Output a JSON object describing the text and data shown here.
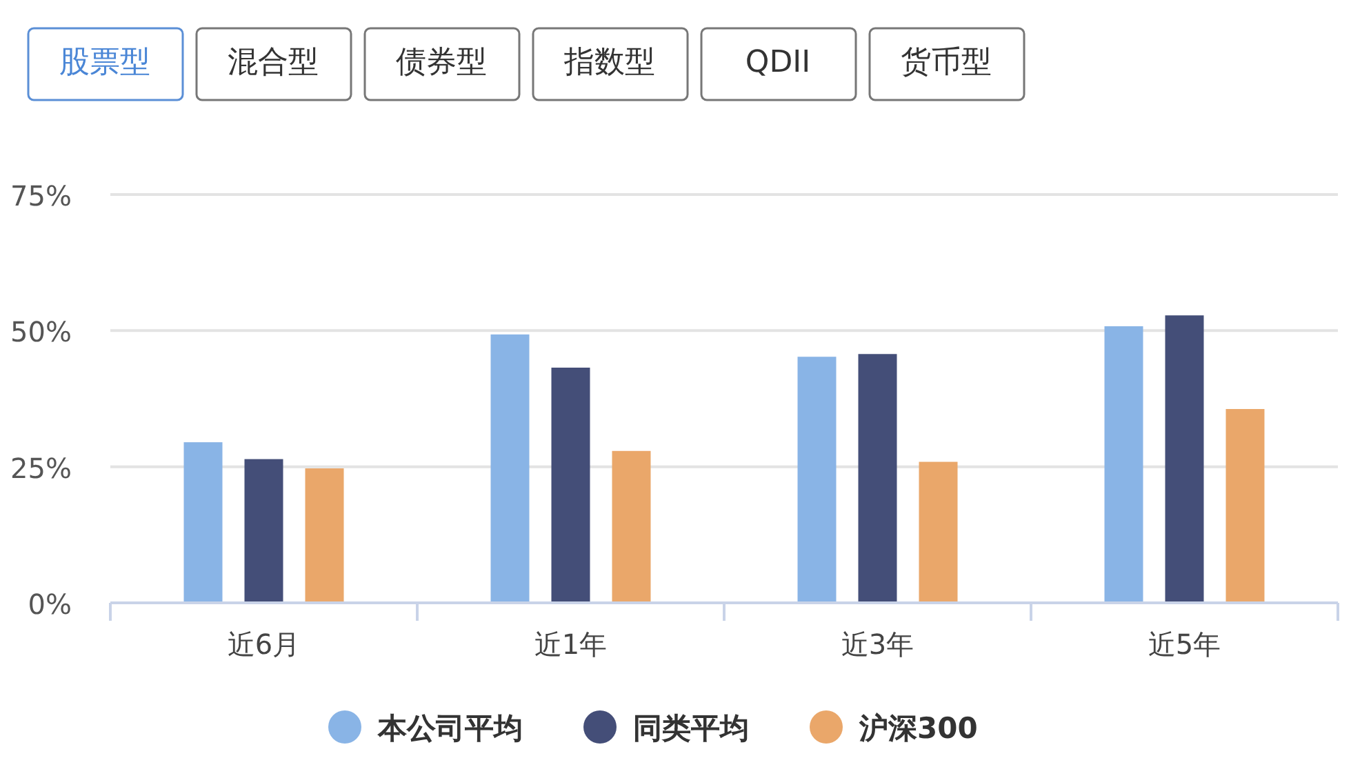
{
  "chart_data": {
    "type": "bar",
    "categories": [
      "近6月",
      "近1年",
      "近3年",
      "近5年"
    ],
    "series": [
      {
        "name": "本公司平均",
        "color": "#89b4e6",
        "values": [
          29.5,
          49.3,
          45.2,
          50.8
        ]
      },
      {
        "name": "同类平均",
        "color": "#444e78",
        "values": [
          26.4,
          43.2,
          45.7,
          52.8
        ]
      },
      {
        "name": "沪深300",
        "color": "#eaa76a",
        "values": [
          24.7,
          27.9,
          25.9,
          35.6
        ]
      }
    ],
    "ylim": [
      0,
      75
    ],
    "yticks": [
      {
        "value": 0,
        "label": "0%"
      },
      {
        "value": 25,
        "label": "25%"
      },
      {
        "value": 50,
        "label": "50%"
      },
      {
        "value": 75,
        "label": "75%"
      }
    ],
    "grid": "y",
    "legend": "bottom",
    "annotations": [
      "股票型",
      "混合型",
      "债券型",
      "指数型",
      "QDII",
      "货币型"
    ]
  }
}
